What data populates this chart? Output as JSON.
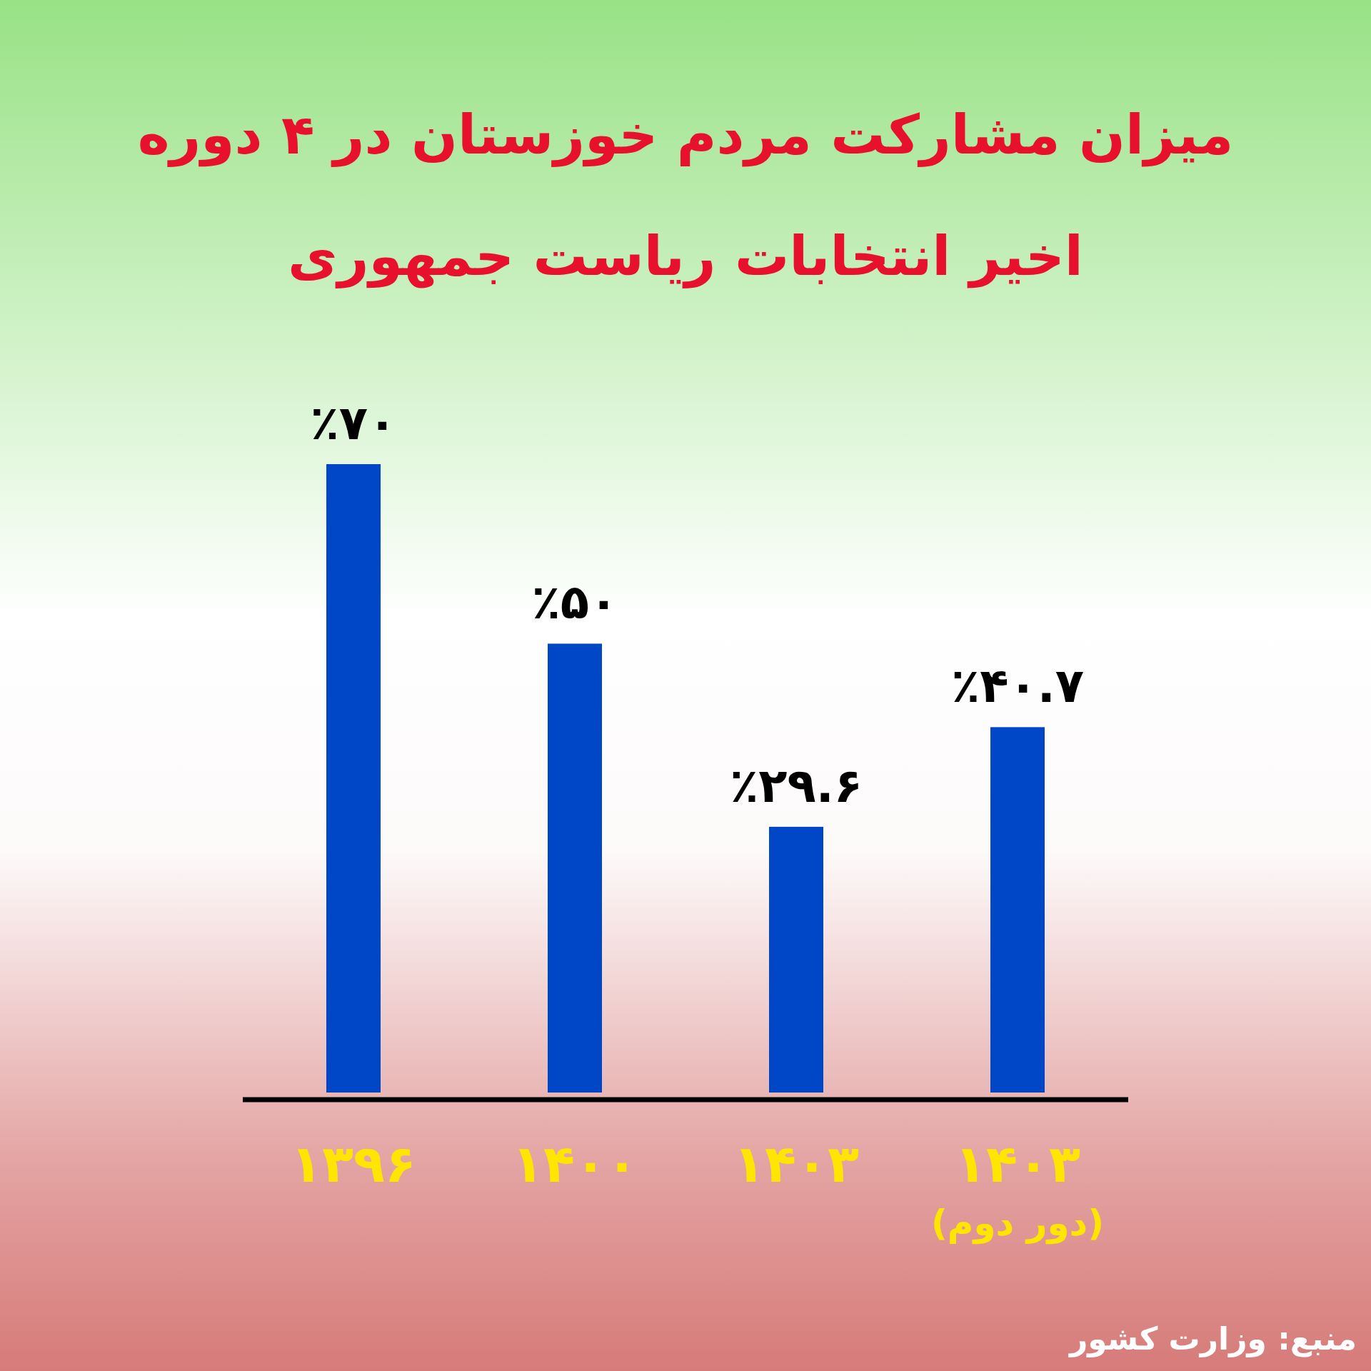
{
  "chart_data": {
    "type": "bar",
    "title": "میزان مشارکت مردم خوزستان در ۴ دوره\nاخیر انتخابات ریاست جمهوری",
    "categories": [
      "۱۳۹۶",
      "۱۴۰۰",
      "۱۴۰۳",
      "۱۴۰۳\n(دور دوم)"
    ],
    "values": [
      70,
      50,
      29.6,
      40.7
    ],
    "value_labels": [
      "٪۷۰",
      "٪۵۰",
      "٪۲۹.۶",
      "٪۴۰.۷"
    ],
    "color": "#0047c8",
    "annotations": [
      "منبع: وزارت کشور"
    ]
  }
}
